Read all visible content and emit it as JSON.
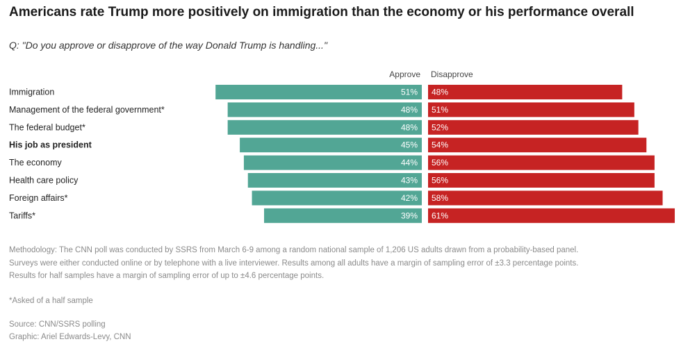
{
  "header": {
    "title": "Americans rate Trump more positively on immigration than the economy or his performance overall",
    "subtitle": "Q: \"Do you approve or disapprove of the way Donald Trump is handling...\""
  },
  "chart_data": {
    "type": "bar",
    "orientation": "diverging-horizontal",
    "legend": [
      "Approve",
      "Disapprove"
    ],
    "colors": {
      "approve": "#52a695",
      "disapprove": "#c62323"
    },
    "categories": [
      "Immigration",
      "Management of the federal government*",
      "The federal budget*",
      "His job as president",
      "The economy",
      "Health care policy",
      "Foreign affairs*",
      "Tariffs*"
    ],
    "bold_category": "His job as president",
    "series": [
      {
        "name": "Approve",
        "values": [
          51,
          48,
          48,
          45,
          44,
          43,
          42,
          39
        ]
      },
      {
        "name": "Disapprove",
        "values": [
          48,
          51,
          52,
          54,
          56,
          56,
          58,
          61
        ]
      }
    ],
    "value_suffix": "%"
  },
  "footer": {
    "methodology": [
      "Methodology: The CNN poll was conducted by SSRS from March 6-9 among a random national sample of 1,206 US adults drawn from a probability-based panel.",
      "Surveys were either conducted online or by telephone with a live interviewer. Results among all adults have a margin of sampling error of ±3.3 percentage points.",
      "Results for half samples have a margin of sampling error of up to ±4.6 percentage points."
    ],
    "asked_note": "*Asked of a half sample",
    "source": "Source: CNN/SSRS polling",
    "graphic": "Graphic: Ariel Edwards-Levy, CNN"
  }
}
